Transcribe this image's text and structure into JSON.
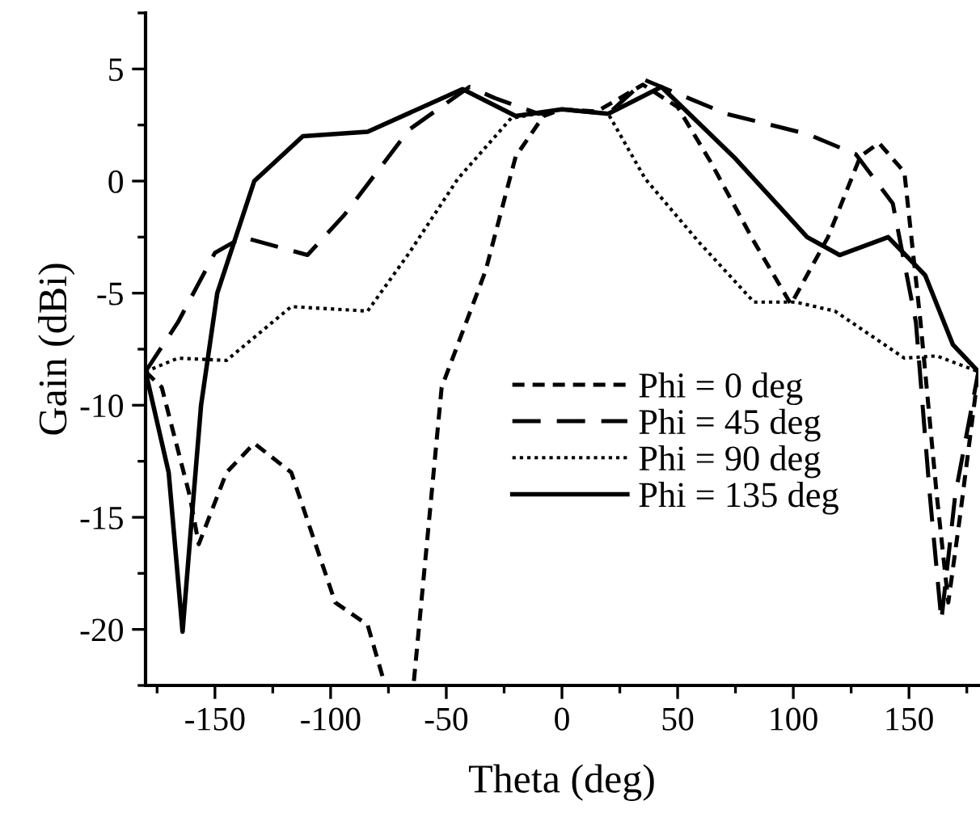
{
  "chart_data": {
    "type": "line",
    "xlabel": "Theta (deg)",
    "ylabel": "Gain (dBi)",
    "xlim": [
      -180,
      180
    ],
    "ylim": [
      -22.5,
      7.5
    ],
    "xticks": [
      {
        "value": -175,
        "label": null
      },
      -150,
      {
        "value": -125,
        "label": null
      },
      -100,
      {
        "value": -75,
        "label": null
      },
      -50,
      {
        "value": -25,
        "label": null
      },
      0,
      {
        "value": 25,
        "label": null
      },
      50,
      {
        "value": 75,
        "label": null
      },
      100,
      {
        "value": 125,
        "label": null
      },
      150,
      {
        "value": 175,
        "label": null
      }
    ],
    "yticks": [
      {
        "value": -22.5,
        "label": null
      },
      -20,
      {
        "value": -17.5,
        "label": null
      },
      -15,
      {
        "value": -12.5,
        "label": null
      },
      -10,
      {
        "value": -7.5,
        "label": null
      },
      -5,
      {
        "value": -2.5,
        "label": null
      },
      0,
      {
        "value": 2.5,
        "label": null
      },
      5,
      {
        "value": 7.5,
        "label": null
      }
    ],
    "grid": false,
    "legend": "right",
    "series": [
      {
        "name": "Phi = 0 deg",
        "line_style": "dashed",
        "color": "#000000",
        "x": [
          -180,
          -173,
          -161,
          -157,
          -145,
          -133,
          -117,
          -98,
          -84,
          -77,
          -76,
          -65,
          -64,
          -52,
          -33,
          -20,
          -8,
          0,
          15,
          35,
          50,
          64,
          83,
          99,
          115,
          129,
          137,
          148,
          155,
          162,
          167,
          172,
          180
        ],
        "values": [
          -8.5,
          -9.2,
          -14,
          -16.2,
          -13,
          -11.7,
          -13,
          -18.8,
          -19.8,
          -22.3,
          null,
          null,
          -22.3,
          -9.2,
          -4,
          1.1,
          2.9,
          3.2,
          3.1,
          4.3,
          3.3,
          0.9,
          -2.7,
          -5.5,
          -2.5,
          1.1,
          1.7,
          0.4,
          -6.3,
          -14,
          -18.8,
          -15,
          -8.5
        ]
      },
      {
        "name": "Phi = 45 deg",
        "line_style": "longdash",
        "color": "#000000",
        "x": [
          -180,
          -166,
          -150,
          -138,
          -110,
          -94,
          -66,
          -40,
          -29,
          -10,
          0,
          20,
          36,
          71,
          106,
          127,
          143,
          153,
          159,
          164,
          170,
          180
        ],
        "values": [
          -8.5,
          -6.3,
          -3.2,
          -2.5,
          -3.3,
          -1.5,
          2.3,
          4.2,
          3.7,
          3.0,
          3.2,
          3.0,
          4.5,
          3.0,
          2.1,
          1.2,
          -1.0,
          -6.3,
          -14,
          -19.6,
          -14,
          -8.5
        ]
      },
      {
        "name": "Phi = 90 deg",
        "line_style": "dotted",
        "color": "#000000",
        "x": [
          -180,
          -166,
          -145,
          -117,
          -84,
          -66,
          -45,
          -22,
          0,
          20,
          36,
          59,
          83,
          101,
          118,
          148,
          162,
          180
        ],
        "values": [
          -8.5,
          -7.9,
          -8.0,
          -5.6,
          -5.8,
          -3.2,
          0.1,
          2.8,
          3.2,
          3.0,
          0.1,
          -2.7,
          -5.4,
          -5.4,
          -5.8,
          -7.9,
          -7.8,
          -8.5
        ]
      },
      {
        "name": "Phi = 135 deg",
        "line_style": "solid",
        "color": "#000000",
        "x": [
          -180,
          -170,
          -164,
          -160,
          -156,
          -149,
          -133,
          -112,
          -84,
          -43,
          -20,
          0,
          20,
          43,
          75,
          106,
          120,
          141,
          157,
          169,
          180
        ],
        "values": [
          -8.5,
          -13,
          -20.1,
          -15,
          -10,
          -5,
          0,
          2,
          2.2,
          4.1,
          2.9,
          3.2,
          3.0,
          4.2,
          1.0,
          -2.5,
          -3.3,
          -2.5,
          -4.2,
          -7.3,
          -8.5
        ]
      }
    ]
  }
}
